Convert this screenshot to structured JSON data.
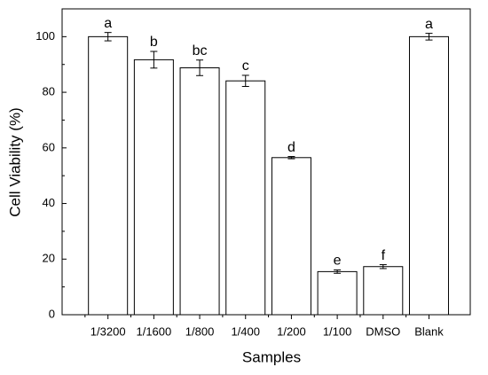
{
  "chart_data": {
    "type": "bar",
    "x_label": "Samples",
    "y_label": "Cell Viability (%)",
    "categories": [
      "1/3200",
      "1/1600",
      "1/800",
      "1/400",
      "1/200",
      "1/100",
      "DMSO",
      "Blank"
    ],
    "values": [
      100,
      91.7,
      88.8,
      84.1,
      56.5,
      15.5,
      17.3,
      100
    ],
    "errors": [
      1.5,
      3,
      2.8,
      2,
      0.4,
      0.6,
      0.7,
      1.2
    ],
    "annotations": [
      "a",
      "b",
      "bc",
      "c",
      "d",
      "e",
      "f",
      "a"
    ],
    "color": "#ffffff",
    "ylim": [
      0,
      110
    ],
    "yticks": [
      0,
      20,
      40,
      60,
      80,
      100
    ]
  }
}
